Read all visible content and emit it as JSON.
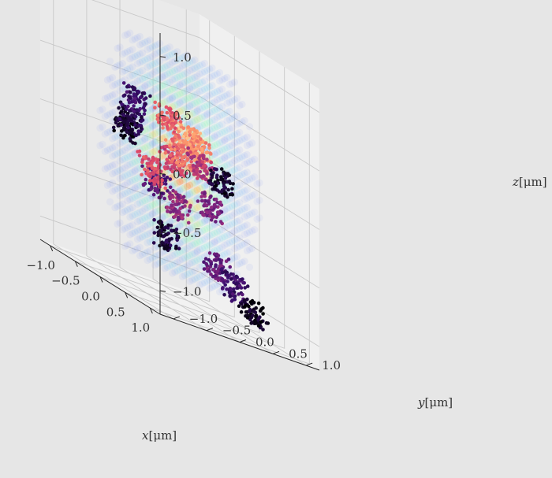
{
  "chart_data": {
    "type": "scatter",
    "projection": "3d",
    "x_label_var": "x",
    "x_label_unit": "[μm]",
    "y_label_var": "y",
    "y_label_unit": "[μm]",
    "z_label_var": "z",
    "z_label_unit": "[μm]",
    "x_ticks": [
      "−1.0",
      "−0.5",
      "0.0",
      "0.5",
      "1.0"
    ],
    "y_ticks": [
      "−1.0",
      "−0.5",
      "0.0",
      "0.5",
      "1.0"
    ],
    "z_ticks": [
      "−1.0",
      "−0.5",
      "0.0",
      "0.5",
      "1.0"
    ],
    "x_range": [
      -1.2,
      1.2
    ],
    "y_range": [
      -1.2,
      1.2
    ],
    "z_range": [
      -1.2,
      1.2
    ],
    "grid": true,
    "background_field": {
      "description_kind": "volumetric intensity shown as translucent spheres",
      "colormap": [
        "#2b2bff",
        "#40c0ff",
        "#70ffb0",
        "#ffd040",
        "#ff5020"
      ],
      "extent": 0.9
    },
    "trajectory": {
      "colormap": [
        "#000004",
        "#3b0f70",
        "#8c2981",
        "#de4968",
        "#fe9f6d",
        "#fcfdbf"
      ],
      "clusters": [
        {
          "x": -0.95,
          "y": -0.1,
          "z": 0.05,
          "c": 0.05
        },
        {
          "x": -0.7,
          "y": -0.2,
          "z": 0.15,
          "c": 0.12
        },
        {
          "x": -0.55,
          "y": -0.25,
          "z": 0.35,
          "c": 0.2
        },
        {
          "x": -0.6,
          "y": 0.1,
          "z": -0.3,
          "c": 0.25
        },
        {
          "x": -0.8,
          "y": 0.4,
          "z": -0.75,
          "c": 0.1
        },
        {
          "x": -0.3,
          "y": 0.2,
          "z": -0.4,
          "c": 0.4
        },
        {
          "x": -0.2,
          "y": 0.05,
          "z": 0.0,
          "c": 0.55
        },
        {
          "x": 0.0,
          "y": 0.0,
          "z": 0.1,
          "c": 0.7
        },
        {
          "x": 0.15,
          "y": 0.05,
          "z": 0.25,
          "c": 0.8
        },
        {
          "x": 0.35,
          "y": 0.0,
          "z": 0.2,
          "c": 0.75
        },
        {
          "x": 0.5,
          "y": -0.05,
          "z": 0.1,
          "c": 0.5
        },
        {
          "x": 0.75,
          "y": 0.05,
          "z": 0.05,
          "c": 0.08
        },
        {
          "x": 0.3,
          "y": 0.25,
          "z": -0.25,
          "c": 0.35
        },
        {
          "x": 0.1,
          "y": 0.5,
          "z": -0.75,
          "c": 0.3
        },
        {
          "x": 0.35,
          "y": 0.55,
          "z": -0.85,
          "c": 0.2
        },
        {
          "x": 0.35,
          "y": 0.85,
          "z": -1.0,
          "c": 0.05
        },
        {
          "x": -0.15,
          "y": -0.3,
          "z": -0.15,
          "c": 0.6
        },
        {
          "x": 0.05,
          "y": -0.2,
          "z": 0.35,
          "c": 0.65
        }
      ]
    }
  }
}
